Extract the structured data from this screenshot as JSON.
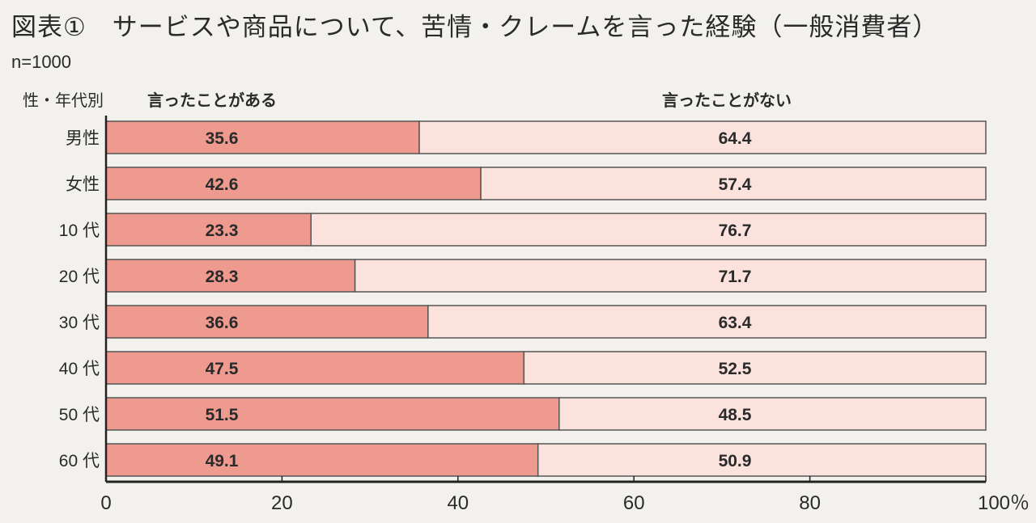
{
  "title": "図表①　サービスや商品について、苦情・クレームを言った経験（一般消費者）",
  "sample": "n=1000",
  "category_header": "性・年代別",
  "colors": {
    "said": "#ef9a8e",
    "not_said": "#fbe2dc",
    "border": "#555555"
  },
  "chart_data": {
    "type": "bar",
    "orientation": "horizontal",
    "stacked": true,
    "title": "図表①　サービスや商品について、苦情・クレームを言った経験（一般消費者）",
    "categories": [
      "男性",
      "女性",
      "10 代",
      "20 代",
      "30 代",
      "40 代",
      "50 代",
      "60 代"
    ],
    "series": [
      {
        "name": "言ったことがある",
        "values": [
          35.6,
          42.6,
          23.3,
          28.3,
          36.6,
          47.5,
          51.5,
          49.1
        ]
      },
      {
        "name": "言ったことがない",
        "values": [
          64.4,
          57.4,
          76.7,
          71.7,
          63.4,
          52.5,
          48.5,
          50.9
        ]
      }
    ],
    "xlim": [
      0,
      100
    ],
    "xticks": [
      "0",
      "20",
      "40",
      "60",
      "80",
      "100％"
    ],
    "grid": false,
    "legend": "top"
  }
}
